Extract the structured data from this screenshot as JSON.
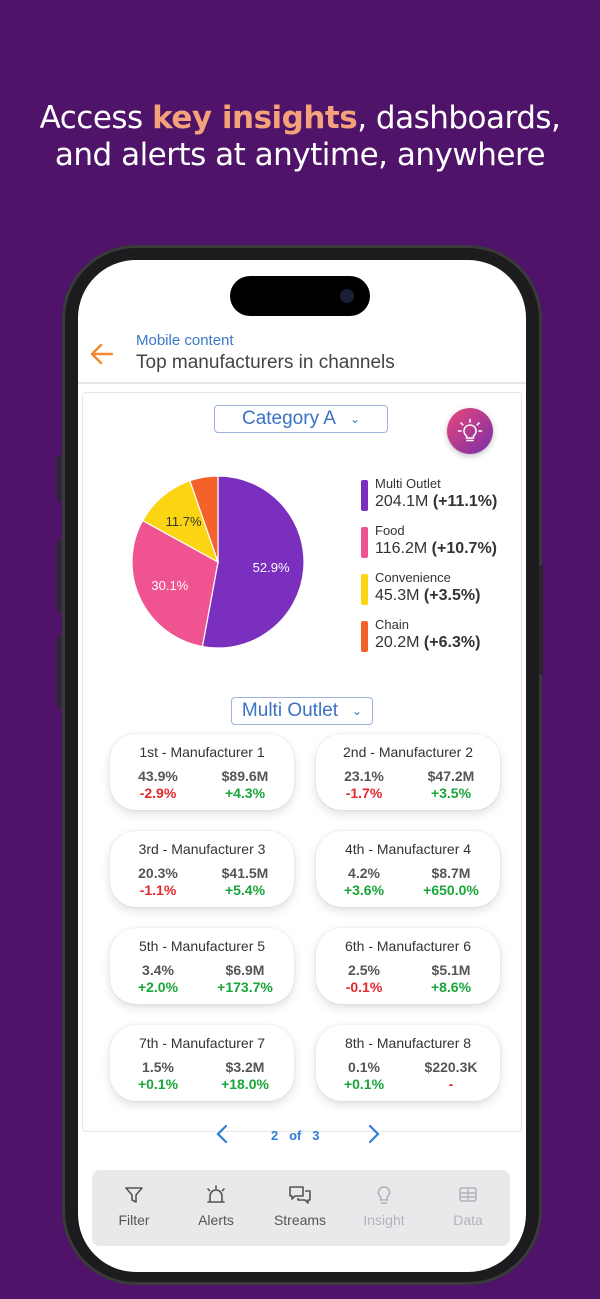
{
  "headline": {
    "pre": "Access ",
    "highlight": "key insights",
    "post": ", dashboards,",
    "line2": "and alerts at anytime, anywhere"
  },
  "header": {
    "subtitle": "Mobile content",
    "title": "Top manufacturers in channels"
  },
  "category_dropdown": {
    "value": "Category A"
  },
  "channel_dropdown": {
    "value": "Multi Outlet"
  },
  "chart_data": {
    "type": "pie",
    "slices": [
      {
        "name": "Multi Outlet",
        "value": 52.9,
        "label": "52.9%",
        "color": "#7b2fbe"
      },
      {
        "name": "Food",
        "value": 30.1,
        "label": "30.1%",
        "color": "#ef5390"
      },
      {
        "name": "Convenience",
        "value": 11.7,
        "label": "11.7%",
        "color": "#fcd512"
      },
      {
        "name": "Chain",
        "value": 5.3,
        "label": "",
        "color": "#f4622b"
      }
    ]
  },
  "legend": [
    {
      "name": "Multi Outlet",
      "amount": "204.1M",
      "change": "(+11.1%)",
      "color": "#7b2fbe"
    },
    {
      "name": "Food",
      "amount": "116.2M",
      "change": "(+10.7%)",
      "color": "#ef5390"
    },
    {
      "name": "Convenience",
      "amount": "45.3M",
      "change": "(+3.5%)",
      "color": "#fcd512"
    },
    {
      "name": "Chain",
      "amount": "20.2M",
      "change": "(+6.3%)",
      "color": "#f4622b"
    }
  ],
  "manufacturers": [
    {
      "title": "1st - Manufacturer 1",
      "share": "43.9%",
      "share_change": "-2.9%",
      "value": "$89.6M",
      "value_change": "+4.3%"
    },
    {
      "title": "2nd - Manufacturer 2",
      "share": "23.1%",
      "share_change": "-1.7%",
      "value": "$47.2M",
      "value_change": "+3.5%"
    },
    {
      "title": "3rd - Manufacturer 3",
      "share": "20.3%",
      "share_change": "-1.1%",
      "value": "$41.5M",
      "value_change": "+5.4%"
    },
    {
      "title": "4th - Manufacturer 4",
      "share": "4.2%",
      "share_change": "+3.6%",
      "value": "$8.7M",
      "value_change": "+650.0%"
    },
    {
      "title": "5th - Manufacturer 5",
      "share": "3.4%",
      "share_change": "+2.0%",
      "value": "$6.9M",
      "value_change": "+173.7%"
    },
    {
      "title": "6th - Manufacturer 6",
      "share": "2.5%",
      "share_change": "-0.1%",
      "value": "$5.1M",
      "value_change": "+8.6%"
    },
    {
      "title": "7th - Manufacturer 7",
      "share": "1.5%",
      "share_change": "+0.1%",
      "value": "$3.2M",
      "value_change": "+18.0%"
    },
    {
      "title": "8th - Manufacturer 8",
      "share": "0.1%",
      "share_change": "+0.1%",
      "value": "$220.3K",
      "value_change": "-"
    }
  ],
  "pager": {
    "current": "2",
    "of": "of",
    "total": "3"
  },
  "nav": [
    {
      "label": "Filter",
      "icon": "filter-icon"
    },
    {
      "label": "Alerts",
      "icon": "alert-icon"
    },
    {
      "label": "Streams",
      "icon": "chat-icon"
    },
    {
      "label": "Insight",
      "icon": "bulb-icon"
    },
    {
      "label": "Data",
      "icon": "table-icon"
    }
  ],
  "colors": {
    "background": "#4f136a",
    "accent": "#f5a27a",
    "link": "#3a72c4",
    "negative": "#e3282e",
    "positive": "#1aa53a"
  }
}
